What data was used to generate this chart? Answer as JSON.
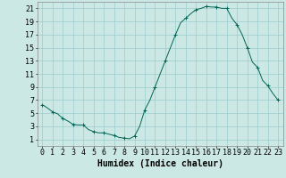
{
  "title": "",
  "xlabel": "Humidex (Indice chaleur)",
  "ylabel": "",
  "background_color": "#cce8e4",
  "grid_color": "#99cccc",
  "line_color": "#006655",
  "marker_color": "#006655",
  "xlim": [
    -0.5,
    23.5
  ],
  "ylim": [
    0,
    22
  ],
  "x_ticks": [
    0,
    1,
    2,
    3,
    4,
    5,
    6,
    7,
    8,
    9,
    10,
    11,
    12,
    13,
    14,
    15,
    16,
    17,
    18,
    19,
    20,
    21,
    22,
    23
  ],
  "y_ticks": [
    1,
    3,
    5,
    7,
    9,
    11,
    13,
    15,
    17,
    19,
    21
  ],
  "x_values": [
    0,
    0.5,
    1,
    1.5,
    2,
    2.5,
    3,
    3.5,
    4,
    4.5,
    5,
    5.5,
    6,
    6.5,
    7,
    7.5,
    8,
    8.5,
    9,
    9.5,
    10,
    10.5,
    11,
    11.5,
    12,
    12.5,
    13,
    13.5,
    14,
    14.5,
    15,
    15.5,
    16,
    16.5,
    17,
    17.5,
    18,
    18.5,
    19,
    19.5,
    20,
    20.5,
    21,
    21.5,
    22,
    22.5,
    23
  ],
  "y_values": [
    6.3,
    5.8,
    5.2,
    4.9,
    4.2,
    3.8,
    3.3,
    3.2,
    3.2,
    2.5,
    2.2,
    2.0,
    2.0,
    1.8,
    1.6,
    1.3,
    1.2,
    1.1,
    1.5,
    3.0,
    5.5,
    7.0,
    9.0,
    11.0,
    13.0,
    15.0,
    17.0,
    18.8,
    19.5,
    20.2,
    20.8,
    21.0,
    21.3,
    21.2,
    21.2,
    21.0,
    21.0,
    19.5,
    18.5,
    17.0,
    15.0,
    12.8,
    12.0,
    10.0,
    9.2,
    8.0,
    7.0
  ],
  "marker_x": [
    0,
    1,
    2,
    3,
    4,
    5,
    6,
    7,
    8,
    9,
    10,
    11,
    12,
    13,
    14,
    15,
    16,
    17,
    18,
    19,
    20,
    21,
    22,
    23
  ],
  "marker_y": [
    6.3,
    5.2,
    4.2,
    3.3,
    3.2,
    2.2,
    2.0,
    1.6,
    1.2,
    1.5,
    5.5,
    9.0,
    13.0,
    17.0,
    19.5,
    20.8,
    21.3,
    21.2,
    21.0,
    18.5,
    15.0,
    12.0,
    9.2,
    7.0
  ],
  "xlabel_fontsize": 7,
  "tick_fontsize": 6,
  "linewidth": 0.7,
  "markersize": 2.5,
  "markeredgewidth": 0.7
}
